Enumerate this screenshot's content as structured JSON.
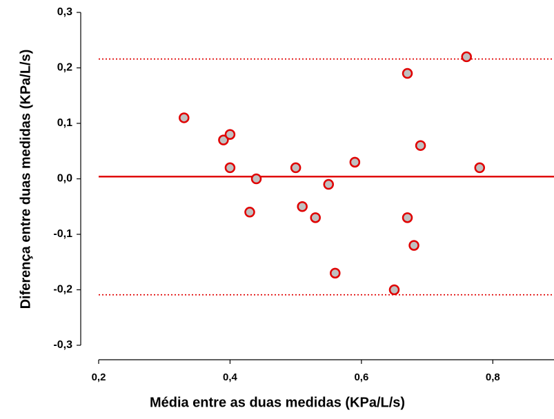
{
  "chart_data": {
    "type": "scatter",
    "x_label": "Média entre as duas medidas (KPa/L/s)",
    "y_label": "Diferença entre duas medidas (KPa/L/s)",
    "x": [
      0.33,
      0.39,
      0.4,
      0.4,
      0.44,
      0.43,
      0.5,
      0.51,
      0.53,
      0.55,
      0.56,
      0.59,
      0.65,
      0.67,
      0.67,
      0.68,
      0.69,
      0.76,
      0.78
    ],
    "values": [
      0.11,
      0.07,
      0.08,
      0.02,
      0.0,
      -0.06,
      0.02,
      -0.05,
      -0.07,
      -0.01,
      -0.17,
      0.03,
      -0.2,
      0.19,
      -0.07,
      -0.12,
      0.06,
      0.22,
      0.02
    ],
    "color": "#c0c0c0",
    "edge_color": "#e00000",
    "hlines": [
      {
        "value": 0.004,
        "style": "solid"
      },
      {
        "value": 0.216,
        "style": "dotted"
      },
      {
        "value": -0.209,
        "style": "dotted"
      }
    ],
    "line_color": "#e00000",
    "xlim": [
      0.2,
      0.89
    ],
    "ylim": [
      -0.3,
      0.3
    ],
    "xticks": [
      {
        "value": 0.2,
        "label": "0,2"
      },
      {
        "value": 0.4,
        "label": "0,4"
      },
      {
        "value": 0.6,
        "label": "0,6"
      },
      {
        "value": 0.8,
        "label": "0,8"
      }
    ],
    "yticks": [
      {
        "value": -0.3,
        "label": "-0,3"
      },
      {
        "value": -0.2,
        "label": "-0,2"
      },
      {
        "value": -0.1,
        "label": "-0,1"
      },
      {
        "value": 0,
        "label": "0,0"
      },
      {
        "value": 0.1,
        "label": "0,1"
      },
      {
        "value": 0.2,
        "label": "0,2"
      },
      {
        "value": 0.3,
        "label": "0,3"
      }
    ],
    "grid": false
  }
}
